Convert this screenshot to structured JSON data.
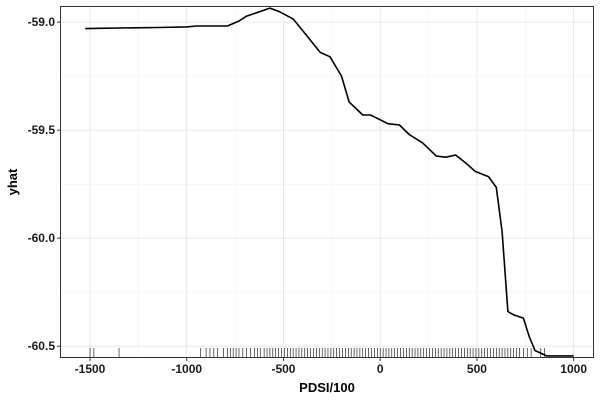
{
  "chart_data": {
    "type": "line",
    "title": "",
    "xlabel": "PDSI/100",
    "ylabel": "yhat",
    "xlim": [
      -1650,
      1100
    ],
    "ylim": [
      -60.55,
      -58.93
    ],
    "x_ticks": [
      -1500,
      -1000,
      -500,
      0,
      500,
      1000
    ],
    "x_tick_labels": [
      "-1500",
      "-1000",
      "-500",
      "0",
      "500",
      "1000"
    ],
    "y_ticks": [
      -59.0,
      -59.5,
      -60.0,
      -60.5
    ],
    "y_tick_labels": [
      "-59.0",
      "-59.5",
      "-60.0",
      "-60.5"
    ],
    "grid": true,
    "series": [
      {
        "line_color": "#000000",
        "x": [
          -1525,
          -1350,
          -1150,
          -1000,
          -950,
          -790,
          -730,
          -690,
          -620,
          -570,
          -520,
          -450,
          -400,
          -310,
          -260,
          -200,
          -160,
          -90,
          -50,
          0,
          40,
          100,
          150,
          220,
          290,
          340,
          390,
          440,
          490,
          530,
          560,
          600,
          630,
          660,
          690,
          740,
          770,
          800,
          860,
          1000
        ],
        "y": [
          -59.03,
          -59.027,
          -59.025,
          -59.022,
          -59.018,
          -59.018,
          -58.995,
          -58.972,
          -58.951,
          -58.935,
          -58.952,
          -58.985,
          -59.04,
          -59.14,
          -59.16,
          -59.25,
          -59.37,
          -59.43,
          -59.43,
          -59.452,
          -59.47,
          -59.476,
          -59.52,
          -59.56,
          -59.62,
          -59.625,
          -59.615,
          -59.65,
          -59.69,
          -59.705,
          -59.715,
          -59.765,
          -59.97,
          -60.34,
          -60.355,
          -60.37,
          -60.455,
          -60.52,
          -60.545,
          -60.545
        ]
      }
    ],
    "rug_x": [
      -1500,
      -1480,
      -1350,
      -930,
      -900,
      -880,
      -860,
      -840,
      -810,
      -790,
      -775,
      -760,
      -745,
      -730,
      -710,
      -690,
      -670,
      -650,
      -635,
      -620,
      -600,
      -585,
      -570,
      -555,
      -540,
      -525,
      -510,
      -495,
      -480,
      -465,
      -450,
      -435,
      -420,
      -405,
      -390,
      -375,
      -360,
      -345,
      -330,
      -315,
      -300,
      -285,
      -270,
      -255,
      -240,
      -225,
      -210,
      -195,
      -180,
      -165,
      -150,
      -135,
      -120,
      -105,
      -90,
      -75,
      -60,
      -45,
      -30,
      -15,
      0,
      15,
      30,
      45,
      60,
      75,
      90,
      105,
      120,
      135,
      150,
      165,
      180,
      195,
      210,
      225,
      240,
      255,
      270,
      285,
      300,
      315,
      330,
      345,
      360,
      375,
      390,
      405,
      420,
      435,
      450,
      465,
      480,
      495,
      510,
      525,
      540,
      555,
      570,
      585,
      600,
      615,
      630,
      645,
      660,
      675,
      690,
      705,
      720,
      740,
      760,
      780,
      830,
      850
    ]
  }
}
